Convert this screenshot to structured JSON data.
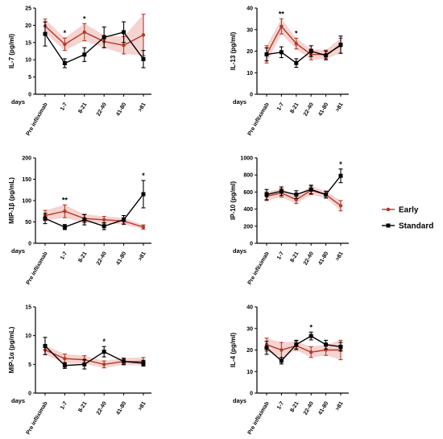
{
  "chart_data": [
    {
      "type": "line",
      "ylabel": "IL-7 (pg/ml)",
      "xlabel": "days",
      "categories": [
        "Pre infliximab",
        "1-7",
        "8-21",
        "22-40",
        "41-80",
        ">81"
      ],
      "yticks": [
        0,
        5,
        10,
        15,
        20,
        25
      ],
      "ylim": [
        0,
        25
      ],
      "significance": [
        "",
        "*",
        "*",
        "",
        "",
        ""
      ],
      "series": [
        {
          "name": "Early",
          "values": [
            19.8,
            14.5,
            18.0,
            15.3,
            14.2,
            17.2
          ],
          "errors": [
            2.0,
            1.8,
            2.5,
            1.8,
            2.5,
            6.0
          ]
        },
        {
          "name": "Standard",
          "values": [
            17.5,
            9.0,
            11.5,
            16.5,
            18.0,
            10.2
          ],
          "errors": [
            3.5,
            1.3,
            2.0,
            3.0,
            3.0,
            2.5
          ]
        }
      ]
    },
    {
      "type": "line",
      "ylabel": "IL-13 (pg/ml)",
      "xlabel": "days",
      "categories": [
        "Pre infliximab",
        "1-7",
        "8-21",
        "22-40",
        "41-80",
        ">81"
      ],
      "yticks": [
        0,
        10,
        20,
        30,
        40
      ],
      "ylim": [
        0,
        40
      ],
      "significance": [
        "",
        "**",
        "*",
        "",
        "",
        ""
      ],
      "series": [
        {
          "name": "Early",
          "values": [
            18.5,
            31.5,
            23.5,
            18.5,
            18.5,
            22.5
          ],
          "errors": [
            4.0,
            3.5,
            2.5,
            2.5,
            2.0,
            3.5
          ]
        },
        {
          "name": "Standard",
          "values": [
            18.5,
            19.5,
            14.5,
            20.0,
            18.0,
            23.0
          ],
          "errors": [
            3.0,
            2.5,
            2.0,
            2.5,
            2.0,
            4.0
          ]
        }
      ]
    },
    {
      "type": "line",
      "ylabel": "MIP-1β (pg/mL)",
      "xlabel": "days",
      "categories": [
        "Pre infliximab",
        "1-7",
        "8-21",
        "22-40",
        "41-80",
        ">81"
      ],
      "yticks": [
        0,
        50,
        100,
        150,
        200
      ],
      "ylim": [
        0,
        200
      ],
      "significance": [
        "",
        "**",
        "",
        "",
        "",
        "*"
      ],
      "series": [
        {
          "name": "Early",
          "values": [
            65,
            75,
            58,
            55,
            52,
            38
          ],
          "errors": [
            12,
            15,
            10,
            8,
            8,
            5
          ]
        },
        {
          "name": "Standard",
          "values": [
            58,
            38,
            55,
            40,
            55,
            115
          ],
          "errors": [
            12,
            6,
            12,
            8,
            10,
            32
          ]
        }
      ]
    },
    {
      "type": "line",
      "ylabel": "IP-10 (pg/ml)",
      "xlabel": "days",
      "categories": [
        "Pre infliximab",
        "1-7",
        "8-21",
        "22-40",
        "41-80",
        ">81"
      ],
      "yticks": [
        0,
        200,
        400,
        600,
        800,
        1000
      ],
      "ylim": [
        0,
        1000
      ],
      "significance": [
        "",
        "",
        "",
        "",
        "",
        "*"
      ],
      "series": [
        {
          "name": "Early",
          "values": [
            550,
            590,
            510,
            620,
            570,
            440
          ],
          "errors": [
            50,
            50,
            45,
            50,
            40,
            60
          ]
        },
        {
          "name": "Standard",
          "values": [
            570,
            610,
            570,
            630,
            570,
            790
          ],
          "errors": [
            60,
            50,
            45,
            50,
            40,
            80
          ]
        }
      ]
    },
    {
      "type": "line",
      "ylabel": "MIP-1α (pg/mL)",
      "xlabel": "days",
      "categories": [
        "Pre infliximab",
        "1-7",
        "8-21",
        "22-40",
        "41-80",
        ">81"
      ],
      "yticks": [
        0,
        5,
        10,
        15
      ],
      "ylim": [
        0,
        15
      ],
      "significance": [
        "",
        "",
        "",
        "*",
        "",
        ""
      ],
      "series": [
        {
          "name": "Early",
          "values": [
            7.5,
            6.0,
            5.8,
            5.0,
            5.5,
            5.5
          ],
          "errors": [
            0.8,
            0.8,
            0.7,
            0.6,
            0.6,
            0.7
          ]
        },
        {
          "name": "Standard",
          "values": [
            8.2,
            4.8,
            5.0,
            7.2,
            5.5,
            5.2
          ],
          "errors": [
            1.5,
            0.5,
            0.8,
            0.9,
            0.5,
            0.5
          ]
        }
      ]
    },
    {
      "type": "line",
      "ylabel": "IL-4 (pg/ml)",
      "xlabel": "days",
      "categories": [
        "Pre infliximab",
        "1-7",
        "8-21",
        "22-40",
        "41-80",
        ">81"
      ],
      "yticks": [
        0,
        10,
        20,
        30,
        40
      ],
      "ylim": [
        0,
        40
      ],
      "significance": [
        "",
        "",
        "",
        "*",
        "",
        ""
      ],
      "series": [
        {
          "name": "Early",
          "values": [
            22.5,
            20.0,
            22.0,
            19.0,
            20.0,
            20.0
          ],
          "errors": [
            3.0,
            3.5,
            2.0,
            2.5,
            2.5,
            4.5
          ]
        },
        {
          "name": "Standard",
          "values": [
            21.0,
            15.0,
            22.5,
            26.5,
            22.5,
            21.5
          ],
          "errors": [
            3.0,
            1.5,
            2.0,
            1.8,
            2.0,
            2.0
          ]
        }
      ]
    }
  ],
  "legend": {
    "placement": "right",
    "entries": [
      {
        "label": "Early",
        "color": "#b33a26",
        "marker": "circle"
      },
      {
        "label": "Standard",
        "color": "#000000",
        "marker": "square"
      }
    ]
  },
  "colors": {
    "early_line": "#b33a26",
    "early_band": "#f2c4c2",
    "standard_line": "#000000"
  }
}
